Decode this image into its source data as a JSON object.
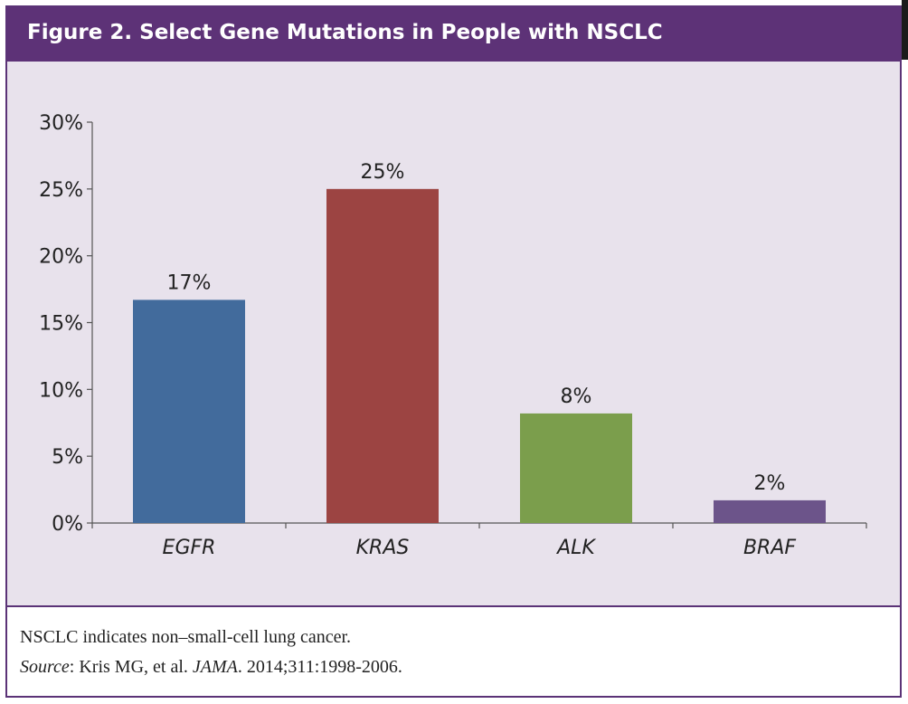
{
  "header": {
    "title": "Figure 2. Select Gene Mutations in People with NSCLC"
  },
  "caption": {
    "line1": "NSCLC indicates non–small-cell lung cancer.",
    "source_label": "Source",
    "source_sep": ": Kris MG, et al. ",
    "journal": "JAMA",
    "citation": ". 2014;311:1998-2006."
  },
  "colors": {
    "header": "#5d3277",
    "plot_background": "#e8e2ec",
    "axis": "#555555"
  },
  "chart_data": {
    "type": "bar",
    "title": "Figure 2. Select Gene Mutations in People with NSCLC",
    "xlabel": "",
    "ylabel": "",
    "categories": [
      "EGFR",
      "KRAS",
      "ALK",
      "BRAF"
    ],
    "values": [
      17,
      25,
      8,
      2
    ],
    "bar_values": [
      16.7,
      25,
      8.2,
      1.7
    ],
    "value_labels": [
      "17%",
      "25%",
      "8%",
      "2%"
    ],
    "bar_colors": [
      "#426b9c",
      "#9c4442",
      "#7b9e4c",
      "#6c548a"
    ],
    "ylim": [
      0,
      30
    ],
    "yticks": [
      0,
      5,
      10,
      15,
      20,
      25,
      30
    ],
    "ytick_labels": [
      "0%",
      "5%",
      "10%",
      "15%",
      "20%",
      "25%",
      "30%"
    ],
    "grid": false,
    "legend": "none"
  }
}
